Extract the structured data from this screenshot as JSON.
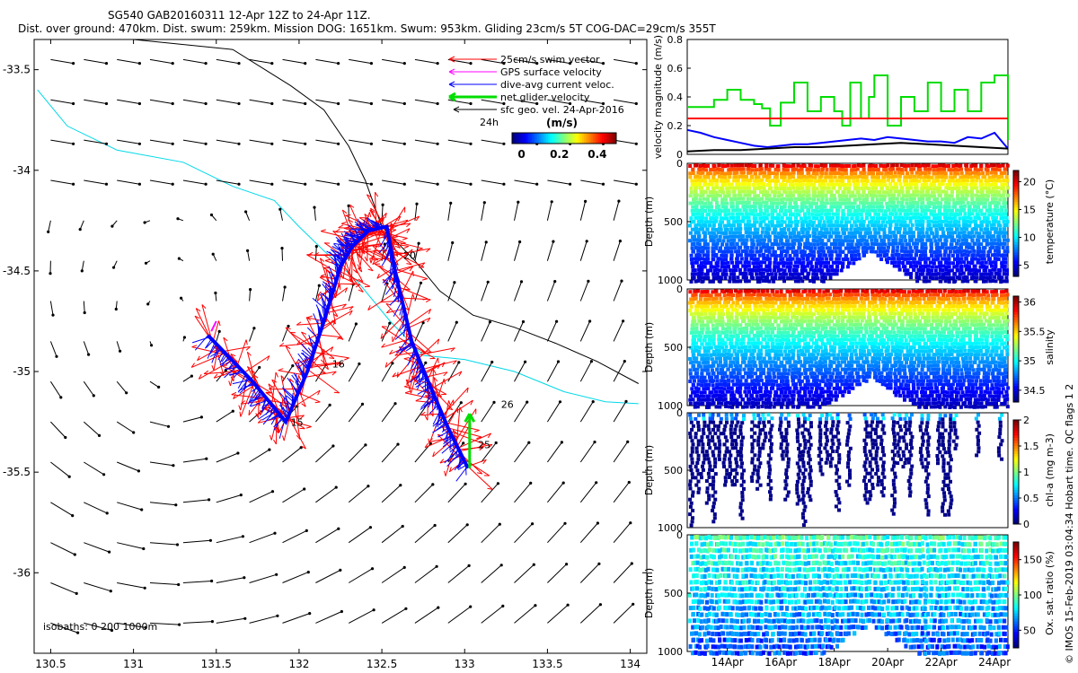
{
  "header": {
    "line1": "SG540 GAB20160311 12-Apr 12Z to 24-Apr 11Z.",
    "line2": "Dist. over ground: 470km. Dist. swum: 259km. Mission DOG: 1651km. Swum: 953km. Gliding 23cm/s 5T COG-DAC=29cm/s 355T"
  },
  "credit": "© IMOS 15-Feb-2019 03:04:34 Hobart time. QC flags 1  2",
  "colors": {
    "swim": "#ff0000",
    "dac": "#0000ff",
    "gps": "#ff00ff",
    "net": "#00dd00",
    "sfc": "#000000",
    "isobath_shallow": "#000000",
    "isobath_deep": "#00d8e8"
  },
  "chart_data": [
    {
      "id": "map",
      "type": "scatter",
      "title": "Glider track with velocity vectors",
      "xlim": [
        130.4,
        134.1
      ],
      "ylim": [
        -36.4,
        -33.35
      ],
      "xticks": [
        "130.5",
        "131",
        "131.5",
        "132",
        "132.5",
        "133",
        "133.5",
        "134"
      ],
      "xtick_values": [
        130.5,
        131,
        131.5,
        132,
        132.5,
        133,
        133.5,
        134
      ],
      "yticks": [
        "-33.5",
        "-34",
        "-34.5",
        "-35",
        "-35.5",
        "-36"
      ],
      "ytick_values": [
        -33.5,
        -34,
        -34.5,
        -35,
        -35.5,
        -36
      ],
      "legend": [
        "25cm/s swim vector",
        "GPS surface velocity",
        "dive-avg current veloc.",
        "net glider velocity",
        "sfc geo. vel. 24-Apr-2016"
      ],
      "legend_24h": "24h",
      "colorbar_label": "(m/s)",
      "colorbar_ticks": [
        "0",
        "0.2",
        "0.4"
      ],
      "colorbar_values": [
        0,
        0.2,
        0.4
      ],
      "colorbar_range": [
        -0.05,
        0.5
      ],
      "isobath_note": "isobaths: 0   200  1000m",
      "track": [
        {
          "lon": 131.45,
          "lat": -34.82
        },
        {
          "lon": 131.72,
          "lat": -35.05
        },
        {
          "lon": 131.92,
          "lat": -35.25
        },
        {
          "lon": 132.05,
          "lat": -35.0
        },
        {
          "lon": 132.15,
          "lat": -34.75
        },
        {
          "lon": 132.25,
          "lat": -34.48
        },
        {
          "lon": 132.32,
          "lat": -34.38
        },
        {
          "lon": 132.42,
          "lat": -34.3
        },
        {
          "lon": 132.53,
          "lat": -34.28
        },
        {
          "lon": 132.58,
          "lat": -34.5
        },
        {
          "lon": 132.68,
          "lat": -34.85
        },
        {
          "lon": 132.78,
          "lat": -35.05
        },
        {
          "lon": 132.9,
          "lat": -35.28
        },
        {
          "lon": 133.02,
          "lat": -35.48
        }
      ],
      "day_labels": [
        {
          "text": "15",
          "lon": 131.95,
          "lat": -35.27
        },
        {
          "text": "16",
          "lon": 132.2,
          "lat": -34.98
        },
        {
          "text": "20",
          "lon": 132.63,
          "lat": -34.44
        },
        {
          "text": "26",
          "lon": 133.22,
          "lat": -35.18
        },
        {
          "text": "25",
          "lon": 133.08,
          "lat": -35.38
        }
      ],
      "net_vector": {
        "lon": 133.03,
        "lat": -35.48,
        "dlon": 0.0,
        "dlat": 0.27
      },
      "gps_vector": {
        "lon": 131.47,
        "lat": -34.8,
        "dlon": 0.03,
        "dlat": 0.05
      },
      "isobath_0": [
        [
          131.0,
          -33.35
        ],
        [
          131.6,
          -33.4
        ],
        [
          131.95,
          -33.58
        ],
        [
          132.15,
          -33.7
        ],
        [
          132.3,
          -33.88
        ],
        [
          132.4,
          -34.05
        ],
        [
          132.5,
          -34.28
        ],
        [
          132.7,
          -34.45
        ],
        [
          132.85,
          -34.6
        ],
        [
          133.05,
          -34.72
        ],
        [
          133.3,
          -34.78
        ],
        [
          133.55,
          -34.86
        ],
        [
          133.8,
          -34.95
        ],
        [
          134.05,
          -35.06
        ]
      ],
      "isobath_1000": [
        [
          130.42,
          -33.6
        ],
        [
          130.6,
          -33.78
        ],
        [
          130.9,
          -33.9
        ],
        [
          131.3,
          -33.96
        ],
        [
          131.6,
          -34.08
        ],
        [
          131.85,
          -34.15
        ],
        [
          132.0,
          -34.28
        ],
        [
          132.15,
          -34.4
        ],
        [
          132.35,
          -34.55
        ],
        [
          132.55,
          -34.75
        ],
        [
          132.75,
          -34.92
        ],
        [
          133.0,
          -34.94
        ],
        [
          133.3,
          -35.0
        ],
        [
          133.6,
          -35.1
        ],
        [
          133.85,
          -35.15
        ],
        [
          134.05,
          -35.16
        ]
      ]
    },
    {
      "id": "velocity",
      "type": "line",
      "ylabel": "velocity magnitude (m/s)",
      "ylim": [
        0,
        0.8
      ],
      "yticks": [
        "0",
        "0.2",
        "0.4",
        "0.6",
        "0.8"
      ],
      "ytick_values": [
        0,
        0.2,
        0.4,
        0.6,
        0.8
      ],
      "xlim": [
        12.5,
        24.5
      ],
      "series": [
        {
          "name": "net glider velocity",
          "x": [
            12.5,
            13.0,
            13.5,
            14.0,
            14.5,
            15.0,
            15.3,
            15.6,
            16.0,
            16.5,
            17.0,
            17.5,
            18.0,
            18.3,
            18.6,
            19.0,
            19.3,
            19.5,
            20.0,
            20.5,
            21.0,
            21.5,
            22.0,
            22.5,
            23.0,
            23.5,
            24.0,
            24.5
          ],
          "values": [
            0.33,
            0.33,
            0.38,
            0.45,
            0.38,
            0.35,
            0.32,
            0.2,
            0.36,
            0.5,
            0.3,
            0.4,
            0.3,
            0.2,
            0.5,
            0.25,
            0.4,
            0.55,
            0.2,
            0.4,
            0.3,
            0.5,
            0.3,
            0.45,
            0.3,
            0.5,
            0.55,
            0.1
          ]
        },
        {
          "name": "swim speed 25cm/s",
          "x": [
            12.5,
            24.5
          ],
          "values": [
            0.25,
            0.25
          ]
        },
        {
          "name": "dive-avg current",
          "x": [
            12.5,
            13.0,
            13.5,
            14.0,
            14.5,
            15.0,
            15.5,
            16.0,
            16.5,
            17.0,
            17.5,
            18.0,
            18.5,
            19.0,
            19.5,
            20.0,
            20.5,
            21.0,
            21.5,
            22.0,
            22.5,
            23.0,
            23.5,
            24.0,
            24.5
          ],
          "values": [
            0.17,
            0.15,
            0.12,
            0.1,
            0.08,
            0.06,
            0.05,
            0.06,
            0.07,
            0.07,
            0.08,
            0.09,
            0.1,
            0.11,
            0.1,
            0.12,
            0.11,
            0.1,
            0.09,
            0.09,
            0.08,
            0.12,
            0.11,
            0.15,
            0.04
          ]
        },
        {
          "name": "surface geostrophic",
          "x": [
            12.5,
            13.5,
            14.5,
            15.5,
            16.5,
            17.5,
            18.5,
            19.5,
            20.5,
            21.5,
            22.5,
            23.5,
            24.5
          ],
          "values": [
            0.02,
            0.03,
            0.03,
            0.04,
            0.05,
            0.05,
            0.06,
            0.07,
            0.08,
            0.07,
            0.06,
            0.05,
            0.04
          ]
        }
      ]
    },
    {
      "id": "temperature",
      "type": "heatmap",
      "ylabel": "Depth (m)",
      "cbar_label": "temperature (°C)",
      "vrange": [
        3,
        22
      ],
      "cbar_ticks": [
        "5",
        "10",
        "15",
        "20"
      ],
      "cbar_values": [
        5,
        10,
        15,
        20
      ],
      "yticks": [
        "0",
        "500",
        "1000"
      ],
      "ytick_values": [
        0,
        500,
        1000
      ],
      "surface_value": 21,
      "bottom_value": 4
    },
    {
      "id": "salinity",
      "type": "heatmap",
      "ylabel": "Depth (m)",
      "cbar_label": "salinity",
      "vrange": [
        34.3,
        36.1
      ],
      "cbar_ticks": [
        "34.5",
        "35",
        "35.5",
        "36"
      ],
      "cbar_values": [
        34.5,
        35,
        35.5,
        36
      ],
      "yticks": [
        "0",
        "500",
        "1000"
      ],
      "ytick_values": [
        0,
        500,
        1000
      ],
      "surface_value": 36.0,
      "bottom_value": 34.4
    },
    {
      "id": "chla",
      "type": "heatmap",
      "ylabel": "Depth (m)",
      "cbar_label": "chl-a (mg m-3)",
      "vrange": [
        0,
        2
      ],
      "cbar_ticks": [
        "0",
        "0.5",
        "1",
        "1.5",
        "2"
      ],
      "cbar_values": [
        0,
        0.5,
        1,
        1.5,
        2
      ],
      "yticks": [
        "0",
        "500",
        "1000"
      ],
      "ytick_values": [
        0,
        500,
        1000
      ],
      "surface_value": 0.35,
      "bottom_value": 0.02
    },
    {
      "id": "oxygen",
      "type": "heatmap",
      "ylabel": "Depth (m)",
      "cbar_label": "Ox. sat. ratio (%)",
      "vrange": [
        25,
        175
      ],
      "cbar_ticks": [
        "50",
        "100",
        "150"
      ],
      "cbar_values": [
        50,
        100,
        150
      ],
      "yticks": [
        "0",
        "500",
        "1000"
      ],
      "ytick_values": [
        0,
        500,
        1000
      ],
      "surface_value": 100,
      "bottom_value": 65,
      "xticks": [
        "14Apr",
        "16Apr",
        "18Apr",
        "20Apr",
        "22Apr",
        "24Apr"
      ],
      "xtick_values": [
        14,
        16,
        18,
        20,
        22,
        24
      ]
    }
  ]
}
